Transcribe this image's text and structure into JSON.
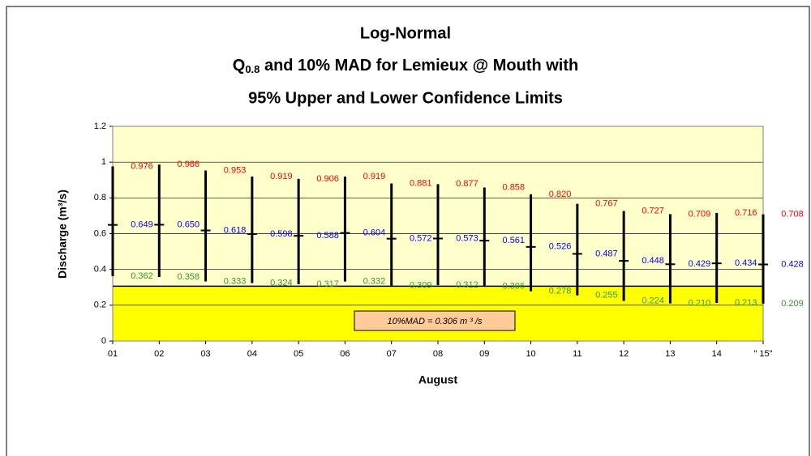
{
  "chart_data": {
    "type": "errorbar",
    "title_line1": "Log-Normal",
    "title_q": "Q",
    "title_sub": "0.8",
    "title_line2_rest": " and 10% MAD for Lemieux @ Mouth with",
    "title_line3": "95% Upper and Lower Confidence Limits",
    "x_label": "August",
    "y_label": "Discharge (m³/s)",
    "categories": [
      "01",
      "02",
      "03",
      "04",
      "05",
      "06",
      "07",
      "08",
      "09",
      "10",
      "11",
      "12",
      "13",
      "14",
      "\" 15\""
    ],
    "series": [
      {
        "color": "#ff0000",
        "role": "upper",
        "values": [
          0.976,
          0.986,
          0.953,
          0.919,
          0.906,
          0.919,
          0.881,
          0.877,
          0.858,
          0.82,
          0.767,
          0.727,
          0.709,
          0.716,
          0.708
        ],
        "value_labels": [
          "0.976",
          "0.986",
          "0.953",
          "0.919",
          "0.906",
          "0.919",
          "0.881",
          "0.877",
          "0.858",
          "0.820",
          "0.767",
          "0.727",
          "0.709",
          "0.716",
          "0.708"
        ]
      },
      {
        "color": "#0000ff",
        "role": "middle",
        "values": [
          0.649,
          0.65,
          0.618,
          0.598,
          0.588,
          0.604,
          0.572,
          0.573,
          0.561,
          0.526,
          0.487,
          0.448,
          0.429,
          0.434,
          0.428
        ],
        "value_labels": [
          "0.649",
          "0.650",
          "0.618",
          "0.598",
          "0.588",
          "0.604",
          "0.572",
          "0.573",
          "0.561",
          "0.526",
          "0.487",
          "0.448",
          "0.429",
          "0.434",
          "0.428"
        ]
      },
      {
        "color": "#339933",
        "role": "lower",
        "values": [
          0.362,
          0.358,
          0.333,
          0.324,
          0.317,
          0.332,
          0.309,
          0.312,
          0.306,
          0.278,
          0.255,
          0.224,
          0.21,
          0.213,
          0.209
        ],
        "value_labels": [
          "0.362",
          "0.358",
          "0.333",
          "0.324",
          "0.317",
          "0.332",
          "0.309",
          "0.312",
          "0.306",
          "0.278",
          "0.255",
          "0.224",
          "0.210",
          "0.213",
          "0.209"
        ]
      }
    ],
    "mad": {
      "value": 0.306,
      "label": "10%MAD = 0.306 m ³ /s"
    },
    "ylim": [
      0,
      1.2
    ],
    "yticks": [
      0,
      0.2,
      0.4,
      0.6,
      0.8,
      1,
      1.2
    ],
    "grid": true
  }
}
